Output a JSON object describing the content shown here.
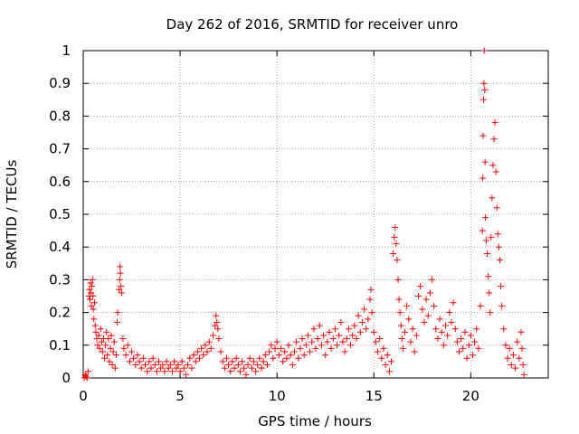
{
  "chart_data": {
    "type": "scatter",
    "title": "Day 262 of 2016, SRMTID for receiver unro",
    "xlabel": "GPS time / hours",
    "ylabel": "SRMTID / TECUs",
    "xlim": [
      0,
      24
    ],
    "ylim": [
      0,
      1
    ],
    "xticks": [
      0,
      5,
      10,
      15,
      20
    ],
    "xtick_labels": [
      "0",
      "5",
      "10",
      "15",
      "20"
    ],
    "yticks": [
      0,
      0.1,
      0.2,
      0.3,
      0.4,
      0.5,
      0.6,
      0.7,
      0.8,
      0.9,
      1
    ],
    "ytick_labels": [
      "0",
      "0.1",
      "0.2",
      "0.3",
      "0.4",
      "0.5",
      "0.6",
      "0.7",
      "0.8",
      "0.9",
      "1"
    ],
    "grid": true,
    "marker": "+",
    "series": [
      {
        "name": "SRMTID",
        "color": "#ff0000",
        "points": [
          [
            0.05,
            0.0
          ],
          [
            0.1,
            0.01
          ],
          [
            0.15,
            0.005
          ],
          [
            0.2,
            0.0
          ],
          [
            0.25,
            0.02
          ],
          [
            0.3,
            0.25
          ],
          [
            0.32,
            0.27
          ],
          [
            0.35,
            0.24
          ],
          [
            0.38,
            0.29
          ],
          [
            0.4,
            0.26
          ],
          [
            0.42,
            0.22
          ],
          [
            0.45,
            0.28
          ],
          [
            0.48,
            0.3
          ],
          [
            0.5,
            0.25
          ],
          [
            0.52,
            0.21
          ],
          [
            0.55,
            0.18
          ],
          [
            0.58,
            0.23
          ],
          [
            0.62,
            0.16
          ],
          [
            0.65,
            0.14
          ],
          [
            0.7,
            0.12
          ],
          [
            0.75,
            0.1
          ],
          [
            0.8,
            0.13
          ],
          [
            0.85,
            0.09
          ],
          [
            0.9,
            0.15
          ],
          [
            0.95,
            0.11
          ],
          [
            1.0,
            0.08
          ],
          [
            1.05,
            0.12
          ],
          [
            1.1,
            0.06
          ],
          [
            1.15,
            0.1
          ],
          [
            1.2,
            0.14
          ],
          [
            1.25,
            0.07
          ],
          [
            1.3,
            0.12
          ],
          [
            1.35,
            0.05
          ],
          [
            1.4,
            0.09
          ],
          [
            1.45,
            0.13
          ],
          [
            1.5,
            0.04
          ],
          [
            1.55,
            0.08
          ],
          [
            1.6,
            0.11
          ],
          [
            1.65,
            0.03
          ],
          [
            1.7,
            0.07
          ],
          [
            1.75,
            0.17
          ],
          [
            1.78,
            0.2
          ],
          [
            1.85,
            0.27
          ],
          [
            1.88,
            0.3
          ],
          [
            1.9,
            0.34
          ],
          [
            1.92,
            0.32
          ],
          [
            1.95,
            0.28
          ],
          [
            1.98,
            0.26
          ],
          [
            2.05,
            0.12
          ],
          [
            2.1,
            0.09
          ],
          [
            2.2,
            0.07
          ],
          [
            2.3,
            0.1
          ],
          [
            2.4,
            0.05
          ],
          [
            2.5,
            0.08
          ],
          [
            2.6,
            0.06
          ],
          [
            2.7,
            0.04
          ],
          [
            2.8,
            0.07
          ],
          [
            2.9,
            0.05
          ],
          [
            3.0,
            0.03
          ],
          [
            3.1,
            0.06
          ],
          [
            3.2,
            0.04
          ],
          [
            3.3,
            0.02
          ],
          [
            3.4,
            0.05
          ],
          [
            3.5,
            0.03
          ],
          [
            3.6,
            0.06
          ],
          [
            3.7,
            0.04
          ],
          [
            3.8,
            0.02
          ],
          [
            3.9,
            0.05
          ],
          [
            4.0,
            0.03
          ],
          [
            4.1,
            0.04
          ],
          [
            4.2,
            0.02
          ],
          [
            4.3,
            0.05
          ],
          [
            4.4,
            0.03
          ],
          [
            4.5,
            0.04
          ],
          [
            4.6,
            0.02
          ],
          [
            4.7,
            0.05
          ],
          [
            4.8,
            0.03
          ],
          [
            4.9,
            0.04
          ],
          [
            5.0,
            0.02
          ],
          [
            5.1,
            0.05
          ],
          [
            5.2,
            0.03
          ],
          [
            5.3,
            0.01
          ],
          [
            5.4,
            0.04
          ],
          [
            5.5,
            0.06
          ],
          [
            5.6,
            0.03
          ],
          [
            5.7,
            0.07
          ],
          [
            5.8,
            0.05
          ],
          [
            5.9,
            0.08
          ],
          [
            6.0,
            0.06
          ],
          [
            6.1,
            0.09
          ],
          [
            6.2,
            0.07
          ],
          [
            6.3,
            0.1
          ],
          [
            6.4,
            0.08
          ],
          [
            6.5,
            0.11
          ],
          [
            6.6,
            0.09
          ],
          [
            6.7,
            0.13
          ],
          [
            6.8,
            0.16
          ],
          [
            6.85,
            0.19
          ],
          [
            6.9,
            0.17
          ],
          [
            6.95,
            0.15
          ],
          [
            7.0,
            0.12
          ],
          [
            7.1,
            0.08
          ],
          [
            7.2,
            0.05
          ],
          [
            7.3,
            0.03
          ],
          [
            7.4,
            0.06
          ],
          [
            7.5,
            0.04
          ],
          [
            7.6,
            0.02
          ],
          [
            7.7,
            0.05
          ],
          [
            7.8,
            0.03
          ],
          [
            7.9,
            0.06
          ],
          [
            8.0,
            0.04
          ],
          [
            8.1,
            0.02
          ],
          [
            8.2,
            0.05
          ],
          [
            8.3,
            0.03
          ],
          [
            8.4,
            0.01
          ],
          [
            8.5,
            0.04
          ],
          [
            8.6,
            0.06
          ],
          [
            8.7,
            0.03
          ],
          [
            8.8,
            0.05
          ],
          [
            8.9,
            0.02
          ],
          [
            9.0,
            0.04
          ],
          [
            9.1,
            0.06
          ],
          [
            9.2,
            0.03
          ],
          [
            9.3,
            0.05
          ],
          [
            9.4,
            0.07
          ],
          [
            9.5,
            0.04
          ],
          [
            9.6,
            0.08
          ],
          [
            9.7,
            0.1
          ],
          [
            9.8,
            0.06
          ],
          [
            9.9,
            0.09
          ],
          [
            10.0,
            0.11
          ],
          [
            10.1,
            0.07
          ],
          [
            10.2,
            0.09
          ],
          [
            10.3,
            0.05
          ],
          [
            10.4,
            0.08
          ],
          [
            10.5,
            0.06
          ],
          [
            10.6,
            0.1
          ],
          [
            10.7,
            0.07
          ],
          [
            10.8,
            0.04
          ],
          [
            10.9,
            0.08
          ],
          [
            11.0,
            0.11
          ],
          [
            11.1,
            0.06
          ],
          [
            11.2,
            0.09
          ],
          [
            11.3,
            0.12
          ],
          [
            11.4,
            0.07
          ],
          [
            11.5,
            0.1
          ],
          [
            11.6,
            0.13
          ],
          [
            11.7,
            0.08
          ],
          [
            11.8,
            0.11
          ],
          [
            11.9,
            0.15
          ],
          [
            12.0,
            0.09
          ],
          [
            12.1,
            0.12
          ],
          [
            12.2,
            0.16
          ],
          [
            12.3,
            0.1
          ],
          [
            12.4,
            0.13
          ],
          [
            12.5,
            0.07
          ],
          [
            12.6,
            0.11
          ],
          [
            12.7,
            0.14
          ],
          [
            12.8,
            0.09
          ],
          [
            12.9,
            0.12
          ],
          [
            13.0,
            0.15
          ],
          [
            13.1,
            0.1
          ],
          [
            13.2,
            0.13
          ],
          [
            13.3,
            0.17
          ],
          [
            13.4,
            0.11
          ],
          [
            13.5,
            0.08
          ],
          [
            13.6,
            0.12
          ],
          [
            13.7,
            0.15
          ],
          [
            13.8,
            0.1
          ],
          [
            13.9,
            0.13
          ],
          [
            14.0,
            0.16
          ],
          [
            14.1,
            0.12
          ],
          [
            14.2,
            0.19
          ],
          [
            14.3,
            0.14
          ],
          [
            14.4,
            0.17
          ],
          [
            14.5,
            0.21
          ],
          [
            14.6,
            0.15
          ],
          [
            14.7,
            0.18
          ],
          [
            14.8,
            0.24
          ],
          [
            14.85,
            0.27
          ],
          [
            14.9,
            0.2
          ],
          [
            15.0,
            0.14
          ],
          [
            15.1,
            0.11
          ],
          [
            15.2,
            0.08
          ],
          [
            15.3,
            0.12
          ],
          [
            15.4,
            0.06
          ],
          [
            15.5,
            0.09
          ],
          [
            15.6,
            0.04
          ],
          [
            15.7,
            0.07
          ],
          [
            15.8,
            0.02
          ],
          [
            15.9,
            0.05
          ],
          [
            16.0,
            0.38
          ],
          [
            16.05,
            0.43
          ],
          [
            16.1,
            0.46
          ],
          [
            16.15,
            0.41
          ],
          [
            16.2,
            0.36
          ],
          [
            16.25,
            0.3
          ],
          [
            16.3,
            0.24
          ],
          [
            16.35,
            0.2
          ],
          [
            16.4,
            0.16
          ],
          [
            16.45,
            0.12
          ],
          [
            16.5,
            0.09
          ],
          [
            16.6,
            0.14
          ],
          [
            16.7,
            0.22
          ],
          [
            16.8,
            0.18
          ],
          [
            16.9,
            0.11
          ],
          [
            17.0,
            0.15
          ],
          [
            17.1,
            0.08
          ],
          [
            17.2,
            0.13
          ],
          [
            17.3,
            0.25
          ],
          [
            17.4,
            0.28
          ],
          [
            17.5,
            0.21
          ],
          [
            17.6,
            0.17
          ],
          [
            17.7,
            0.24
          ],
          [
            17.8,
            0.19
          ],
          [
            17.9,
            0.26
          ],
          [
            18.0,
            0.3
          ],
          [
            18.1,
            0.22
          ],
          [
            18.2,
            0.15
          ],
          [
            18.3,
            0.12
          ],
          [
            18.4,
            0.18
          ],
          [
            18.5,
            0.14
          ],
          [
            18.6,
            0.1
          ],
          [
            18.7,
            0.16
          ],
          [
            18.8,
            0.13
          ],
          [
            18.9,
            0.2
          ],
          [
            19.0,
            0.17
          ],
          [
            19.1,
            0.23
          ],
          [
            19.2,
            0.15
          ],
          [
            19.3,
            0.11
          ],
          [
            19.4,
            0.08
          ],
          [
            19.5,
            0.12
          ],
          [
            19.6,
            0.09
          ],
          [
            19.7,
            0.14
          ],
          [
            19.8,
            0.06
          ],
          [
            19.9,
            0.1
          ],
          [
            20.0,
            0.13
          ],
          [
            20.1,
            0.07
          ],
          [
            20.2,
            0.11
          ],
          [
            20.3,
            0.15
          ],
          [
            20.4,
            0.09
          ],
          [
            20.5,
            0.22
          ],
          [
            20.6,
            0.45
          ],
          [
            20.62,
            0.61
          ],
          [
            20.64,
            0.74
          ],
          [
            20.66,
            0.85
          ],
          [
            20.68,
            0.9
          ],
          [
            20.7,
            1.0
          ],
          [
            20.72,
            0.88
          ],
          [
            20.74,
            0.66
          ],
          [
            20.76,
            0.49
          ],
          [
            20.8,
            0.42
          ],
          [
            20.85,
            0.38
          ],
          [
            20.9,
            0.31
          ],
          [
            20.95,
            0.26
          ],
          [
            21.0,
            0.2
          ],
          [
            21.05,
            0.43
          ],
          [
            21.1,
            0.55
          ],
          [
            21.15,
            0.65
          ],
          [
            21.2,
            0.73
          ],
          [
            21.25,
            0.78
          ],
          [
            21.3,
            0.63
          ],
          [
            21.35,
            0.52
          ],
          [
            21.4,
            0.44
          ],
          [
            21.45,
            0.4
          ],
          [
            21.5,
            0.36
          ],
          [
            21.55,
            0.28
          ],
          [
            21.6,
            0.22
          ],
          [
            21.7,
            0.15
          ],
          [
            21.8,
            0.1
          ],
          [
            21.9,
            0.06
          ],
          [
            22.0,
            0.09
          ],
          [
            22.1,
            0.04
          ],
          [
            22.2,
            0.07
          ],
          [
            22.3,
            0.03
          ],
          [
            22.4,
            0.11
          ],
          [
            22.5,
            0.06
          ],
          [
            22.6,
            0.14
          ],
          [
            22.65,
            0.09
          ],
          [
            22.7,
            0.04
          ],
          [
            22.75,
            0.01
          ]
        ]
      }
    ]
  }
}
